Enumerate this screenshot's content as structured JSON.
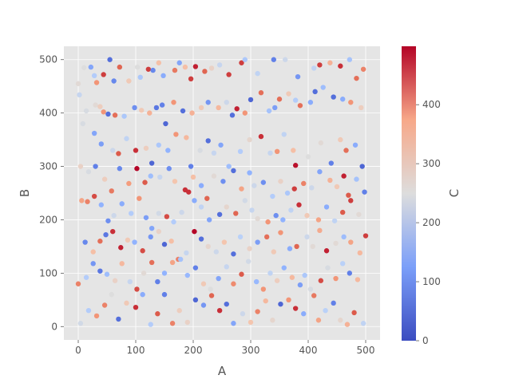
{
  "chart_data": {
    "type": "scatter",
    "title": "",
    "xlabel": "A",
    "ylabel": "B",
    "colorbar_label": "C",
    "xlim": [
      -25,
      525
    ],
    "ylim": [
      -25,
      525
    ],
    "xticks": [
      0,
      100,
      200,
      300,
      400,
      500
    ],
    "yticks": [
      0,
      100,
      200,
      300,
      400,
      500
    ],
    "colorbar_ticks": [
      0,
      100,
      200,
      300,
      400
    ],
    "colorbar_range": [
      0,
      499
    ],
    "colormap": "coolwarm",
    "grid": true,
    "background": "#e5e5e5",
    "grid_color": "#ffffff",
    "note": "approx. 500 points with A, B, C each uniformly spread over 0–499; values estimated",
    "points": [
      [
        0,
        455,
        260
      ],
      [
        10,
        485,
        250
      ],
      [
        22,
        486,
        110
      ],
      [
        28,
        470,
        180
      ],
      [
        32,
        457,
        380
      ],
      [
        44,
        472,
        460
      ],
      [
        55,
        500,
        40
      ],
      [
        62,
        460,
        70
      ],
      [
        72,
        486,
        430
      ],
      [
        88,
        460,
        300
      ],
      [
        103,
        486,
        250
      ],
      [
        108,
        467,
        170
      ],
      [
        122,
        482,
        460
      ],
      [
        130,
        480,
        70
      ],
      [
        140,
        494,
        320
      ],
      [
        148,
        470,
        120
      ],
      [
        168,
        480,
        410
      ],
      [
        176,
        494,
        110
      ],
      [
        186,
        486,
        320
      ],
      [
        196,
        464,
        460
      ],
      [
        204,
        487,
        480
      ],
      [
        220,
        478,
        430
      ],
      [
        232,
        484,
        280
      ],
      [
        246,
        490,
        210
      ],
      [
        262,
        472,
        460
      ],
      [
        284,
        494,
        460
      ],
      [
        290,
        500,
        170
      ],
      [
        312,
        474,
        200
      ],
      [
        340,
        500,
        60
      ],
      [
        360,
        500,
        220
      ],
      [
        382,
        468,
        90
      ],
      [
        410,
        484,
        200
      ],
      [
        420,
        490,
        460
      ],
      [
        438,
        494,
        340
      ],
      [
        456,
        488,
        470
      ],
      [
        472,
        500,
        160
      ],
      [
        484,
        465,
        420
      ],
      [
        496,
        482,
        400
      ],
      [
        2,
        434,
        210
      ],
      [
        14,
        404,
        240
      ],
      [
        30,
        415,
        260
      ],
      [
        38,
        412,
        290
      ],
      [
        44,
        402,
        380
      ],
      [
        52,
        398,
        40
      ],
      [
        64,
        396,
        420
      ],
      [
        80,
        394,
        170
      ],
      [
        98,
        410,
        80
      ],
      [
        110,
        405,
        300
      ],
      [
        124,
        400,
        340
      ],
      [
        136,
        410,
        50
      ],
      [
        146,
        415,
        60
      ],
      [
        152,
        380,
        30
      ],
      [
        166,
        420,
        380
      ],
      [
        182,
        404,
        40
      ],
      [
        198,
        400,
        340
      ],
      [
        214,
        410,
        300
      ],
      [
        226,
        420,
        90
      ],
      [
        244,
        410,
        330
      ],
      [
        258,
        420,
        220
      ],
      [
        268,
        396,
        40
      ],
      [
        276,
        408,
        480
      ],
      [
        290,
        400,
        380
      ],
      [
        300,
        425,
        30
      ],
      [
        318,
        438,
        420
      ],
      [
        332,
        404,
        160
      ],
      [
        342,
        410,
        100
      ],
      [
        350,
        426,
        420
      ],
      [
        366,
        436,
        300
      ],
      [
        378,
        424,
        180
      ],
      [
        386,
        414,
        420
      ],
      [
        404,
        420,
        120
      ],
      [
        412,
        440,
        40
      ],
      [
        426,
        448,
        150
      ],
      [
        444,
        430,
        40
      ],
      [
        460,
        426,
        120
      ],
      [
        474,
        420,
        380
      ],
      [
        492,
        410,
        290
      ],
      [
        8,
        380,
        240
      ],
      [
        28,
        362,
        110
      ],
      [
        40,
        342,
        100
      ],
      [
        60,
        330,
        220
      ],
      [
        70,
        324,
        440
      ],
      [
        84,
        352,
        200
      ],
      [
        100,
        330,
        470
      ],
      [
        118,
        334,
        290
      ],
      [
        128,
        306,
        30
      ],
      [
        140,
        340,
        170
      ],
      [
        156,
        330,
        130
      ],
      [
        170,
        360,
        380
      ],
      [
        188,
        354,
        330
      ],
      [
        196,
        300,
        60
      ],
      [
        212,
        330,
        240
      ],
      [
        226,
        348,
        40
      ],
      [
        236,
        325,
        210
      ],
      [
        248,
        340,
        110
      ],
      [
        262,
        300,
        150
      ],
      [
        282,
        328,
        180
      ],
      [
        298,
        350,
        270
      ],
      [
        318,
        356,
        470
      ],
      [
        334,
        325,
        210
      ],
      [
        346,
        328,
        380
      ],
      [
        358,
        360,
        200
      ],
      [
        374,
        330,
        320
      ],
      [
        378,
        302,
        490
      ],
      [
        400,
        318,
        250
      ],
      [
        422,
        344,
        260
      ],
      [
        440,
        306,
        60
      ],
      [
        456,
        350,
        300
      ],
      [
        466,
        330,
        420
      ],
      [
        482,
        340,
        120
      ],
      [
        494,
        300,
        30
      ],
      [
        4,
        300,
        280
      ],
      [
        18,
        290,
        240
      ],
      [
        30,
        300,
        60
      ],
      [
        46,
        276,
        290
      ],
      [
        58,
        254,
        410
      ],
      [
        72,
        296,
        70
      ],
      [
        88,
        268,
        370
      ],
      [
        102,
        296,
        500
      ],
      [
        116,
        270,
        440
      ],
      [
        126,
        282,
        150
      ],
      [
        142,
        280,
        210
      ],
      [
        158,
        296,
        80
      ],
      [
        168,
        272,
        310
      ],
      [
        186,
        256,
        470
      ],
      [
        200,
        280,
        320
      ],
      [
        214,
        264,
        120
      ],
      [
        224,
        240,
        430
      ],
      [
        236,
        282,
        260
      ],
      [
        252,
        272,
        80
      ],
      [
        270,
        292,
        40
      ],
      [
        284,
        258,
        360
      ],
      [
        298,
        288,
        130
      ],
      [
        306,
        264,
        220
      ],
      [
        322,
        270,
        80
      ],
      [
        338,
        244,
        180
      ],
      [
        352,
        272,
        280
      ],
      [
        364,
        250,
        170
      ],
      [
        376,
        258,
        460
      ],
      [
        392,
        268,
        400
      ],
      [
        406,
        260,
        220
      ],
      [
        420,
        290,
        110
      ],
      [
        438,
        274,
        340
      ],
      [
        450,
        262,
        300
      ],
      [
        462,
        282,
        480
      ],
      [
        470,
        246,
        440
      ],
      [
        484,
        276,
        160
      ],
      [
        498,
        252,
        60
      ],
      [
        6,
        236,
        360
      ],
      [
        16,
        234,
        400
      ],
      [
        28,
        244,
        450
      ],
      [
        40,
        228,
        130
      ],
      [
        52,
        198,
        80
      ],
      [
        62,
        208,
        220
      ],
      [
        76,
        230,
        120
      ],
      [
        92,
        212,
        180
      ],
      [
        106,
        240,
        380
      ],
      [
        118,
        204,
        100
      ],
      [
        128,
        184,
        110
      ],
      [
        140,
        212,
        230
      ],
      [
        154,
        206,
        450
      ],
      [
        166,
        196,
        180
      ],
      [
        180,
        214,
        220
      ],
      [
        192,
        252,
        470
      ],
      [
        202,
        236,
        120
      ],
      [
        214,
        224,
        200
      ],
      [
        228,
        200,
        110
      ],
      [
        246,
        210,
        40
      ],
      [
        258,
        224,
        270
      ],
      [
        274,
        212,
        430
      ],
      [
        290,
        236,
        230
      ],
      [
        302,
        218,
        210
      ],
      [
        312,
        202,
        260
      ],
      [
        330,
        196,
        380
      ],
      [
        344,
        208,
        80
      ],
      [
        356,
        200,
        130
      ],
      [
        370,
        218,
        200
      ],
      [
        384,
        228,
        470
      ],
      [
        398,
        208,
        300
      ],
      [
        418,
        200,
        360
      ],
      [
        432,
        224,
        120
      ],
      [
        446,
        198,
        200
      ],
      [
        460,
        214,
        440
      ],
      [
        474,
        236,
        460
      ],
      [
        488,
        210,
        260
      ],
      [
        12,
        158,
        70
      ],
      [
        26,
        140,
        320
      ],
      [
        38,
        160,
        420
      ],
      [
        48,
        172,
        50
      ],
      [
        60,
        178,
        470
      ],
      [
        74,
        148,
        480
      ],
      [
        86,
        162,
        300
      ],
      [
        98,
        158,
        130
      ],
      [
        112,
        142,
        450
      ],
      [
        126,
        168,
        90
      ],
      [
        140,
        178,
        280
      ],
      [
        150,
        154,
        30
      ],
      [
        162,
        160,
        320
      ],
      [
        174,
        126,
        400
      ],
      [
        188,
        138,
        210
      ],
      [
        202,
        178,
        500
      ],
      [
        214,
        164,
        40
      ],
      [
        226,
        150,
        270
      ],
      [
        240,
        140,
        220
      ],
      [
        254,
        158,
        310
      ],
      [
        270,
        136,
        40
      ],
      [
        282,
        168,
        190
      ],
      [
        298,
        146,
        280
      ],
      [
        312,
        158,
        100
      ],
      [
        328,
        168,
        420
      ],
      [
        340,
        140,
        300
      ],
      [
        352,
        176,
        380
      ],
      [
        368,
        146,
        120
      ],
      [
        380,
        150,
        430
      ],
      [
        398,
        168,
        220
      ],
      [
        408,
        150,
        260
      ],
      [
        420,
        180,
        350
      ],
      [
        432,
        142,
        480
      ],
      [
        448,
        156,
        260
      ],
      [
        462,
        168,
        150
      ],
      [
        474,
        158,
        360
      ],
      [
        490,
        138,
        330
      ],
      [
        500,
        170,
        460
      ],
      [
        0,
        80,
        400
      ],
      [
        14,
        92,
        180
      ],
      [
        26,
        118,
        90
      ],
      [
        38,
        104,
        50
      ],
      [
        50,
        98,
        150
      ],
      [
        64,
        86,
        280
      ],
      [
        76,
        118,
        330
      ],
      [
        90,
        84,
        210
      ],
      [
        102,
        70,
        450
      ],
      [
        114,
        100,
        260
      ],
      [
        128,
        120,
        420
      ],
      [
        138,
        84,
        60
      ],
      [
        150,
        100,
        130
      ],
      [
        164,
        120,
        360
      ],
      [
        178,
        126,
        160
      ],
      [
        190,
        96,
        140
      ],
      [
        204,
        110,
        60
      ],
      [
        218,
        80,
        300
      ],
      [
        230,
        70,
        250
      ],
      [
        244,
        90,
        110
      ],
      [
        258,
        112,
        210
      ],
      [
        270,
        80,
        390
      ],
      [
        284,
        98,
        440
      ],
      [
        296,
        122,
        230
      ],
      [
        310,
        84,
        140
      ],
      [
        322,
        70,
        380
      ],
      [
        334,
        100,
        200
      ],
      [
        346,
        86,
        290
      ],
      [
        358,
        110,
        130
      ],
      [
        372,
        92,
        330
      ],
      [
        386,
        78,
        100
      ],
      [
        394,
        96,
        170
      ],
      [
        410,
        58,
        410
      ],
      [
        422,
        86,
        450
      ],
      [
        434,
        110,
        240
      ],
      [
        448,
        90,
        380
      ],
      [
        460,
        118,
        190
      ],
      [
        472,
        100,
        60
      ],
      [
        486,
        88,
        330
      ],
      [
        4,
        6,
        230
      ],
      [
        18,
        30,
        180
      ],
      [
        32,
        20,
        380
      ],
      [
        46,
        40,
        400
      ],
      [
        58,
        60,
        250
      ],
      [
        70,
        14,
        40
      ],
      [
        84,
        44,
        300
      ],
      [
        100,
        36,
        470
      ],
      [
        112,
        60,
        120
      ],
      [
        126,
        4,
        180
      ],
      [
        138,
        24,
        440
      ],
      [
        150,
        60,
        60
      ],
      [
        164,
        6,
        400
      ],
      [
        176,
        30,
        290
      ],
      [
        190,
        8,
        280
      ],
      [
        204,
        50,
        30
      ],
      [
        218,
        40,
        90
      ],
      [
        232,
        58,
        430
      ],
      [
        246,
        30,
        470
      ],
      [
        258,
        42,
        40
      ],
      [
        270,
        6,
        110
      ],
      [
        286,
        24,
        220
      ],
      [
        300,
        8,
        310
      ],
      [
        312,
        28,
        400
      ],
      [
        326,
        48,
        330
      ],
      [
        338,
        12,
        270
      ],
      [
        352,
        42,
        30
      ],
      [
        366,
        50,
        380
      ],
      [
        378,
        34,
        470
      ],
      [
        392,
        24,
        120
      ],
      [
        404,
        70,
        240
      ],
      [
        418,
        12,
        360
      ],
      [
        430,
        30,
        190
      ],
      [
        444,
        44,
        60
      ],
      [
        456,
        12,
        270
      ],
      [
        468,
        4,
        340
      ],
      [
        480,
        26,
        440
      ],
      [
        496,
        6,
        200
      ]
    ]
  }
}
